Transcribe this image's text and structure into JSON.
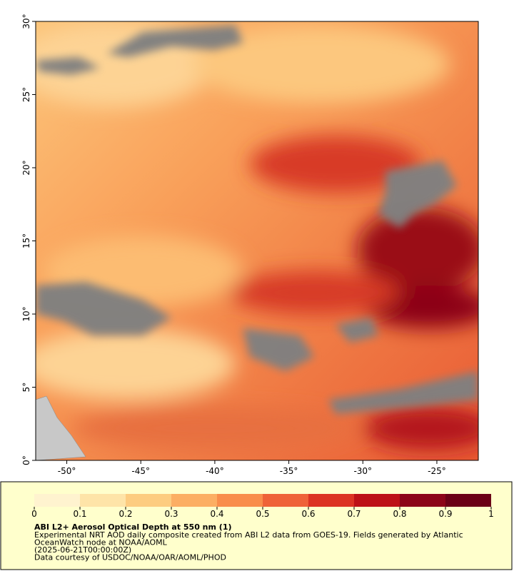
{
  "map": {
    "xlim": [
      -52.1,
      -22.2
    ],
    "ylim": [
      0,
      30
    ],
    "xticks": [
      {
        "value": -50,
        "label": "-50°"
      },
      {
        "value": -45,
        "label": "-45°"
      },
      {
        "value": -40,
        "label": "-40°"
      },
      {
        "value": -35,
        "label": "-35°"
      },
      {
        "value": -30,
        "label": "-30°"
      },
      {
        "value": -25,
        "label": "-25°"
      }
    ],
    "yticks": [
      {
        "value": 0,
        "label": "0°"
      },
      {
        "value": 5,
        "label": "5°"
      },
      {
        "value": 10,
        "label": "10°"
      },
      {
        "value": 15,
        "label": "15°"
      },
      {
        "value": 20,
        "label": "20°"
      },
      {
        "value": 25,
        "label": "25°"
      },
      {
        "value": 30,
        "label": "30°"
      }
    ]
  },
  "colorbar": {
    "lim": [
      0,
      1
    ],
    "ticks": [
      0,
      0.1,
      0.2,
      0.3,
      0.4,
      0.5,
      0.6,
      0.7,
      0.8,
      0.9,
      1
    ],
    "colors": [
      "#fff3cf",
      "#fee4a8",
      "#fdcc80",
      "#fcae63",
      "#f98d4b",
      "#ef6238",
      "#dc3323",
      "#bd1117",
      "#8c0418",
      "#6b0016"
    ]
  },
  "caption": {
    "title": "ABI L2+ Aerosol Optical Depth at 550 nm (1)",
    "lines": [
      "Experimental NRT AOD daily composite created from ABI L2 data from GOES-19. Fields generated by Atlantic",
      "OceanWatch node at NOAA/AOML",
      "(2025-06-21T00:00:00Z)",
      "Data courtesy of USDOC/NOAA/OAR/AOML/PHOD"
    ]
  }
}
